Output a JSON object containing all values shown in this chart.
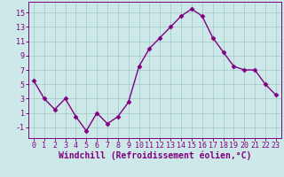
{
  "x": [
    0,
    1,
    2,
    3,
    4,
    5,
    6,
    7,
    8,
    9,
    10,
    11,
    12,
    13,
    14,
    15,
    16,
    17,
    18,
    19,
    20,
    21,
    22,
    23
  ],
  "y": [
    5.5,
    3.0,
    1.5,
    3.0,
    0.5,
    -1.5,
    1.0,
    -0.5,
    0.5,
    2.5,
    7.5,
    10.0,
    11.5,
    13.0,
    14.5,
    15.5,
    14.5,
    11.5,
    9.5,
    7.5,
    7.0,
    7.0,
    5.0,
    3.5
  ],
  "line_color": "#800080",
  "marker": "D",
  "marker_size": 2.5,
  "linewidth": 1.0,
  "bg_color": "#cce8e8",
  "grid_color": "#aacccc",
  "xlabel": "Windchill (Refroidissement éolien,°C)",
  "xlim": [
    -0.5,
    23.5
  ],
  "ylim": [
    -2.5,
    16.5
  ],
  "yticks": [
    -1,
    1,
    3,
    5,
    7,
    9,
    11,
    13,
    15
  ],
  "xticks": [
    0,
    1,
    2,
    3,
    4,
    5,
    6,
    7,
    8,
    9,
    10,
    11,
    12,
    13,
    14,
    15,
    16,
    17,
    18,
    19,
    20,
    21,
    22,
    23
  ],
  "tick_color": "#800080",
  "tick_fontsize": 6,
  "xlabel_fontsize": 7
}
